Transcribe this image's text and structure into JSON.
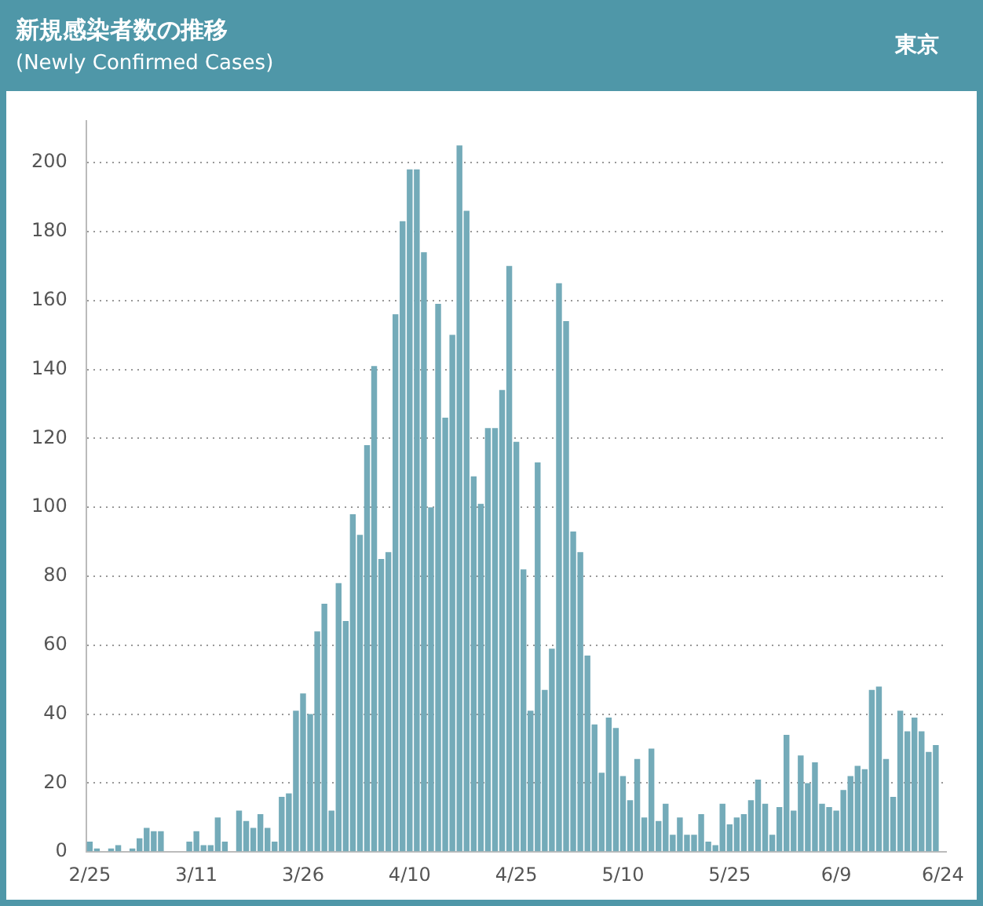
{
  "chart_data": {
    "type": "bar",
    "title": "新規感染者数の推移",
    "subtitle": "(Newly Confirmed Cases)",
    "annotations": [
      "東京"
    ],
    "categories": [
      "2/25",
      null,
      null,
      null,
      null,
      null,
      null,
      null,
      null,
      null,
      null,
      null,
      null,
      null,
      null,
      "3/11",
      null,
      null,
      null,
      null,
      null,
      null,
      null,
      null,
      null,
      null,
      null,
      null,
      null,
      null,
      "3/26",
      null,
      null,
      null,
      null,
      null,
      null,
      null,
      null,
      null,
      null,
      null,
      null,
      null,
      null,
      "4/10",
      null,
      null,
      null,
      null,
      null,
      null,
      null,
      null,
      null,
      null,
      null,
      null,
      null,
      null,
      "4/25",
      null,
      null,
      null,
      null,
      null,
      null,
      null,
      null,
      null,
      null,
      null,
      null,
      null,
      null,
      "5/10",
      null,
      null,
      null,
      null,
      null,
      null,
      null,
      null,
      null,
      null,
      null,
      null,
      null,
      null,
      "5/25",
      null,
      null,
      null,
      null,
      null,
      null,
      null,
      null,
      null,
      null,
      null,
      null,
      null,
      null,
      "6/9",
      null,
      null,
      null,
      null,
      null,
      null,
      null,
      null,
      null,
      null,
      null,
      null,
      null,
      null,
      "6/24"
    ],
    "values": [
      3,
      1,
      0,
      1,
      2,
      0,
      1,
      4,
      7,
      6,
      6,
      0,
      0,
      0,
      3,
      6,
      2,
      2,
      10,
      3,
      0,
      12,
      9,
      7,
      11,
      7,
      3,
      16,
      17,
      41,
      46,
      40,
      64,
      72,
      12,
      78,
      67,
      98,
      92,
      118,
      141,
      85,
      87,
      156,
      183,
      198,
      198,
      174,
      100,
      159,
      126,
      150,
      205,
      186,
      109,
      101,
      123,
      123,
      134,
      170,
      119,
      82,
      41,
      113,
      47,
      59,
      165,
      154,
      93,
      87,
      57,
      37,
      23,
      39,
      36,
      22,
      15,
      27,
      10,
      30,
      9,
      14,
      5,
      10,
      5,
      5,
      11,
      3,
      2,
      14,
      8,
      10,
      11,
      15,
      21,
      14,
      5,
      13,
      34,
      12,
      28,
      20,
      26,
      14,
      13,
      12,
      18,
      22,
      25,
      24,
      47,
      48,
      27,
      16,
      41,
      35,
      39,
      35,
      29,
      31,
      null
    ],
    "color": "#74abb9",
    "ylim": [
      0,
      212
    ],
    "yticks": [
      0,
      20,
      40,
      60,
      80,
      100,
      120,
      140,
      160,
      180,
      200
    ],
    "grid": "y",
    "legend": false
  }
}
